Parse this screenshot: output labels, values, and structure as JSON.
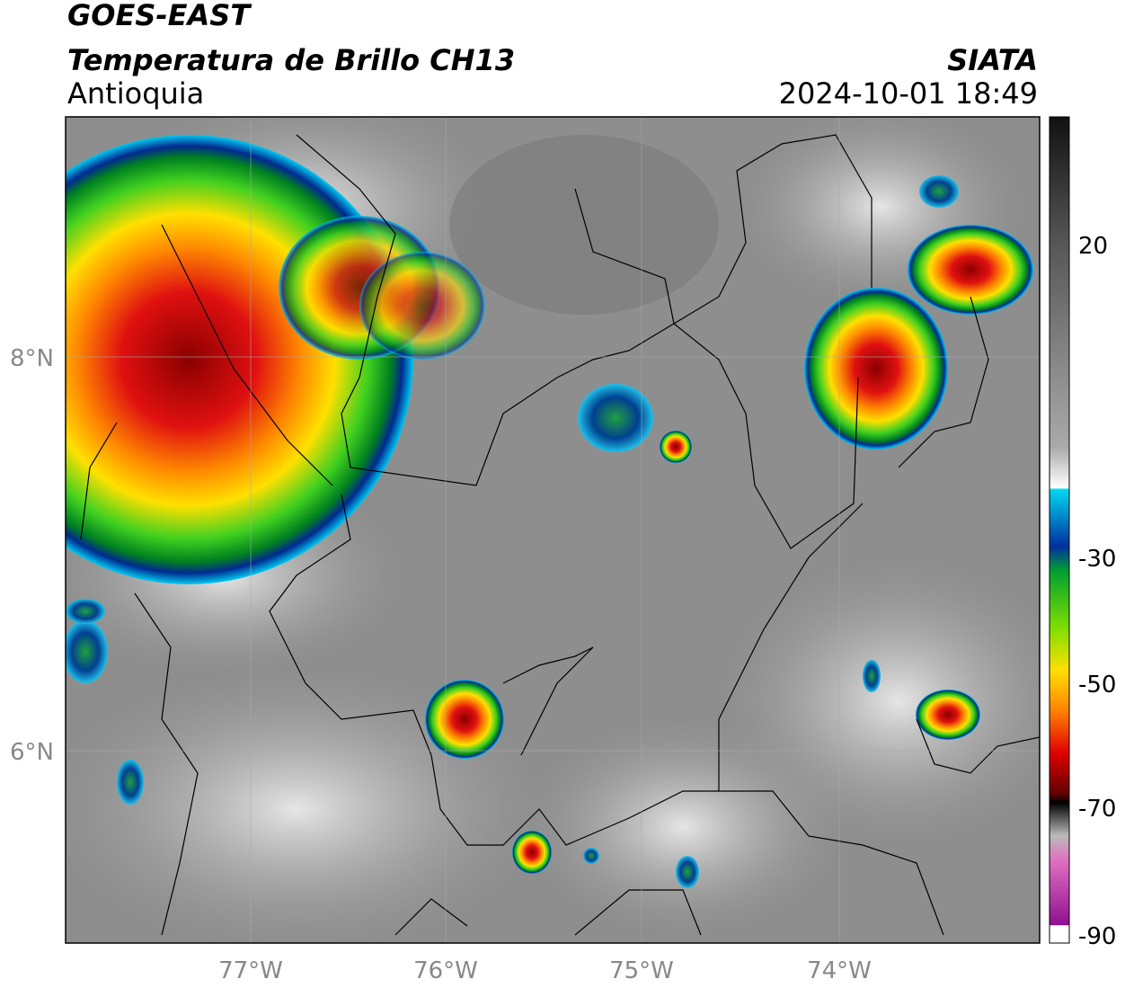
{
  "header": {
    "title": "GOES-EAST",
    "subtitle": "Temperatura de Brillo CH13",
    "region": "Antioquia",
    "source": "SIATA",
    "timestamp": "2024-10-01 18:49"
  },
  "map": {
    "lat_labels": [
      "8°N",
      "6°N"
    ],
    "lon_labels": [
      "77°W",
      "76°W",
      "75°W",
      "74°W"
    ]
  },
  "colorbar": {
    "labels": [
      "20",
      "-30",
      "-50",
      "-70",
      "-90"
    ]
  }
}
